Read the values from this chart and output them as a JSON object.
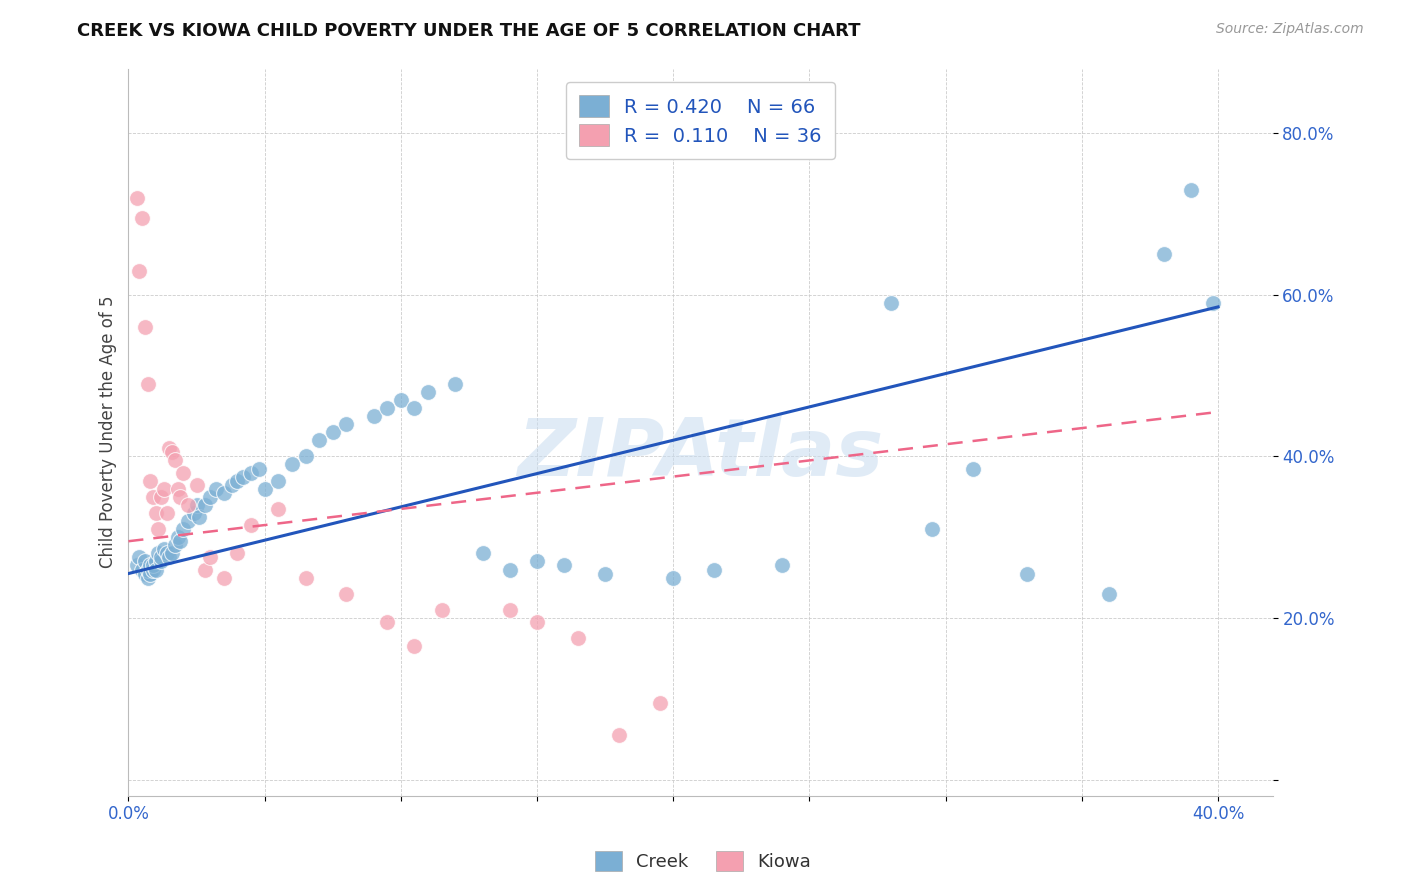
{
  "title": "CREEK VS KIOWA CHILD POVERTY UNDER THE AGE OF 5 CORRELATION CHART",
  "source": "Source: ZipAtlas.com",
  "ylabel": "Child Poverty Under the Age of 5",
  "xlim": [
    0.0,
    0.42
  ],
  "ylim": [
    -0.02,
    0.88
  ],
  "creek_R": 0.42,
  "creek_N": 66,
  "kiowa_R": 0.11,
  "kiowa_N": 36,
  "creek_color": "#7BAFD4",
  "kiowa_color": "#F4A0B0",
  "creek_line_color": "#2255BB",
  "kiowa_line_color": "#EE6688",
  "watermark": "ZIPAtlas",
  "background_color": "#FFFFFF",
  "grid_color": "#CCCCCC",
  "legend_text_color": "#2255BB",
  "creek_line_y0": 0.255,
  "creek_line_y1": 0.585,
  "kiowa_line_y0": 0.295,
  "kiowa_line_y1": 0.455,
  "creek_x": [
    0.003,
    0.004,
    0.005,
    0.006,
    0.006,
    0.007,
    0.007,
    0.008,
    0.008,
    0.009,
    0.009,
    0.01,
    0.01,
    0.011,
    0.012,
    0.012,
    0.013,
    0.014,
    0.015,
    0.016,
    0.017,
    0.018,
    0.019,
    0.02,
    0.022,
    0.024,
    0.025,
    0.026,
    0.028,
    0.03,
    0.032,
    0.035,
    0.038,
    0.04,
    0.042,
    0.045,
    0.048,
    0.05,
    0.055,
    0.06,
    0.065,
    0.07,
    0.075,
    0.08,
    0.09,
    0.095,
    0.1,
    0.105,
    0.11,
    0.12,
    0.13,
    0.14,
    0.15,
    0.16,
    0.175,
    0.2,
    0.215,
    0.24,
    0.28,
    0.295,
    0.31,
    0.33,
    0.36,
    0.38,
    0.39,
    0.398
  ],
  "creek_y": [
    0.265,
    0.275,
    0.26,
    0.27,
    0.255,
    0.25,
    0.26,
    0.265,
    0.255,
    0.26,
    0.265,
    0.27,
    0.26,
    0.28,
    0.27,
    0.275,
    0.285,
    0.28,
    0.275,
    0.28,
    0.29,
    0.3,
    0.295,
    0.31,
    0.32,
    0.33,
    0.34,
    0.325,
    0.34,
    0.35,
    0.36,
    0.355,
    0.365,
    0.37,
    0.375,
    0.38,
    0.385,
    0.36,
    0.37,
    0.39,
    0.4,
    0.42,
    0.43,
    0.44,
    0.45,
    0.46,
    0.47,
    0.46,
    0.48,
    0.49,
    0.28,
    0.26,
    0.27,
    0.265,
    0.255,
    0.25,
    0.26,
    0.265,
    0.59,
    0.31,
    0.385,
    0.255,
    0.23,
    0.65,
    0.73,
    0.59
  ],
  "kiowa_x": [
    0.003,
    0.004,
    0.005,
    0.006,
    0.007,
    0.008,
    0.009,
    0.01,
    0.011,
    0.012,
    0.013,
    0.014,
    0.015,
    0.016,
    0.017,
    0.018,
    0.019,
    0.02,
    0.022,
    0.025,
    0.028,
    0.03,
    0.035,
    0.04,
    0.045,
    0.055,
    0.065,
    0.08,
    0.095,
    0.105,
    0.115,
    0.14,
    0.15,
    0.165,
    0.18,
    0.195
  ],
  "kiowa_y": [
    0.72,
    0.63,
    0.695,
    0.56,
    0.49,
    0.37,
    0.35,
    0.33,
    0.31,
    0.35,
    0.36,
    0.33,
    0.41,
    0.405,
    0.395,
    0.36,
    0.35,
    0.38,
    0.34,
    0.365,
    0.26,
    0.275,
    0.25,
    0.28,
    0.315,
    0.335,
    0.25,
    0.23,
    0.195,
    0.165,
    0.21,
    0.21,
    0.195,
    0.175,
    0.055,
    0.095
  ]
}
